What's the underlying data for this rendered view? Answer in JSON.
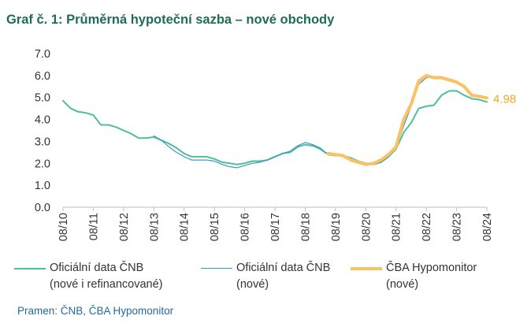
{
  "title": "Graf č. 1: Průměrná hypoteční sazba – nové obchody",
  "source": "Pramen: ČNB, ČBA Hypomonitor",
  "legend": [
    {
      "line1": "Oficiální data ČNB",
      "line2": "(nové i refinancované)",
      "color": "#4cbf9d"
    },
    {
      "line1": "Oficiální data ČNB",
      "line2": "(nové)",
      "color": "#3f97c5"
    },
    {
      "line1": "ČBA Hypomonitor",
      "line2": "(nové)",
      "color": "#fbc163"
    }
  ],
  "chart_data": {
    "type": "line",
    "title": "Graf č. 1: Průměrná hypoteční sazba – nové obchody",
    "xlabel": "",
    "ylabel": "",
    "ylim": [
      0,
      7
    ],
    "yticks": [
      "0.0",
      "1.0",
      "2.0",
      "3.0",
      "4.0",
      "5.0",
      "6.0",
      "7.0"
    ],
    "xticks": [
      "08/10",
      "08/11",
      "08/12",
      "08/13",
      "08/14",
      "08/15",
      "08/16",
      "08/17",
      "08/18",
      "08/19",
      "08/20",
      "08/21",
      "08/22",
      "08/23",
      "08/24"
    ],
    "grid": false,
    "legend_position": "bottom",
    "end_label": "4.98",
    "series": [
      {
        "name": "Oficiální data ČNB (nové i refinancované)",
        "color": "#4cbf9d",
        "points": [
          [
            "08/10",
            4.85
          ],
          [
            "11/10",
            4.5
          ],
          [
            "02/11",
            4.35
          ],
          [
            "05/11",
            4.3
          ],
          [
            "08/11",
            4.2
          ],
          [
            "11/11",
            3.75
          ],
          [
            "02/12",
            3.75
          ],
          [
            "05/12",
            3.65
          ],
          [
            "08/12",
            3.5
          ],
          [
            "11/12",
            3.35
          ],
          [
            "02/13",
            3.15
          ],
          [
            "05/13",
            3.15
          ],
          [
            "08/13",
            3.2
          ],
          [
            "11/13",
            3.05
          ],
          [
            "02/14",
            2.9
          ],
          [
            "05/14",
            2.7
          ],
          [
            "08/14",
            2.45
          ],
          [
            "11/14",
            2.3
          ],
          [
            "02/15",
            2.3
          ],
          [
            "05/15",
            2.3
          ],
          [
            "08/15",
            2.2
          ],
          [
            "11/15",
            2.05
          ],
          [
            "02/16",
            2.0
          ],
          [
            "05/16",
            1.95
          ],
          [
            "08/16",
            2.0
          ],
          [
            "11/16",
            2.1
          ],
          [
            "02/17",
            2.1
          ],
          [
            "05/17",
            2.15
          ],
          [
            "08/17",
            2.3
          ],
          [
            "11/17",
            2.45
          ],
          [
            "02/18",
            2.5
          ],
          [
            "05/18",
            2.75
          ],
          [
            "08/18",
            2.85
          ],
          [
            "11/18",
            2.8
          ],
          [
            "02/19",
            2.65
          ],
          [
            "05/19",
            2.4
          ],
          [
            "08/19",
            2.35
          ],
          [
            "11/19",
            2.35
          ],
          [
            "02/20",
            2.25
          ],
          [
            "05/20",
            2.1
          ],
          [
            "08/20",
            2.0
          ],
          [
            "11/20",
            1.95
          ],
          [
            "02/21",
            2.05
          ],
          [
            "05/21",
            2.3
          ],
          [
            "08/21",
            2.65
          ],
          [
            "11/21",
            3.4
          ],
          [
            "02/22",
            3.85
          ],
          [
            "05/22",
            4.5
          ],
          [
            "08/22",
            4.6
          ],
          [
            "11/22",
            4.65
          ],
          [
            "02/23",
            5.1
          ],
          [
            "05/23",
            5.3
          ],
          [
            "08/23",
            5.3
          ],
          [
            "11/23",
            5.1
          ],
          [
            "02/24",
            4.95
          ],
          [
            "05/24",
            4.9
          ],
          [
            "08/24",
            4.8
          ]
        ]
      },
      {
        "name": "Oficiální data ČNB (nové)",
        "color": "#3f97c5",
        "points": [
          [
            "08/13",
            3.25
          ],
          [
            "11/13",
            3.05
          ],
          [
            "02/14",
            2.75
          ],
          [
            "05/14",
            2.5
          ],
          [
            "08/14",
            2.3
          ],
          [
            "11/14",
            2.15
          ],
          [
            "02/15",
            2.15
          ],
          [
            "05/15",
            2.15
          ],
          [
            "08/15",
            2.1
          ],
          [
            "11/15",
            1.95
          ],
          [
            "02/16",
            1.85
          ],
          [
            "05/16",
            1.8
          ],
          [
            "08/16",
            1.9
          ],
          [
            "11/16",
            2.0
          ],
          [
            "02/17",
            2.05
          ],
          [
            "05/17",
            2.15
          ],
          [
            "08/17",
            2.3
          ],
          [
            "11/17",
            2.45
          ],
          [
            "02/18",
            2.55
          ],
          [
            "05/18",
            2.8
          ],
          [
            "08/18",
            2.95
          ],
          [
            "11/18",
            2.85
          ],
          [
            "02/19",
            2.7
          ],
          [
            "05/19",
            2.4
          ],
          [
            "08/19",
            2.35
          ],
          [
            "11/19",
            2.35
          ],
          [
            "02/20",
            2.2
          ],
          [
            "05/20",
            2.05
          ],
          [
            "08/20",
            1.95
          ],
          [
            "11/20",
            1.95
          ],
          [
            "02/21",
            2.05
          ],
          [
            "05/21",
            2.3
          ],
          [
            "08/21",
            2.7
          ],
          [
            "11/21",
            3.7
          ],
          [
            "02/22",
            4.6
          ],
          [
            "05/22",
            5.6
          ],
          [
            "08/22",
            5.9
          ],
          [
            "11/22",
            5.95
          ],
          [
            "02/23",
            5.95
          ],
          [
            "05/23",
            5.85
          ],
          [
            "08/23",
            5.75
          ],
          [
            "11/23",
            5.5
          ],
          [
            "02/24",
            5.15
          ],
          [
            "05/24",
            5.0
          ],
          [
            "08/24",
            4.95
          ]
        ]
      },
      {
        "name": "ČBA Hypomonitor (nové)",
        "color": "#fbc163",
        "points": [
          [
            "05/19",
            2.45
          ],
          [
            "08/19",
            2.4
          ],
          [
            "11/19",
            2.35
          ],
          [
            "02/20",
            2.15
          ],
          [
            "05/20",
            2.05
          ],
          [
            "08/20",
            1.95
          ],
          [
            "11/20",
            2.0
          ],
          [
            "02/21",
            2.15
          ],
          [
            "05/21",
            2.4
          ],
          [
            "08/21",
            2.75
          ],
          [
            "11/21",
            4.0
          ],
          [
            "02/22",
            4.7
          ],
          [
            "05/22",
            5.75
          ],
          [
            "08/22",
            6.0
          ],
          [
            "11/22",
            5.9
          ],
          [
            "02/23",
            5.9
          ],
          [
            "05/23",
            5.8
          ],
          [
            "08/23",
            5.7
          ],
          [
            "11/23",
            5.5
          ],
          [
            "02/24",
            5.1
          ],
          [
            "05/24",
            5.05
          ],
          [
            "08/24",
            4.98
          ]
        ]
      }
    ]
  }
}
